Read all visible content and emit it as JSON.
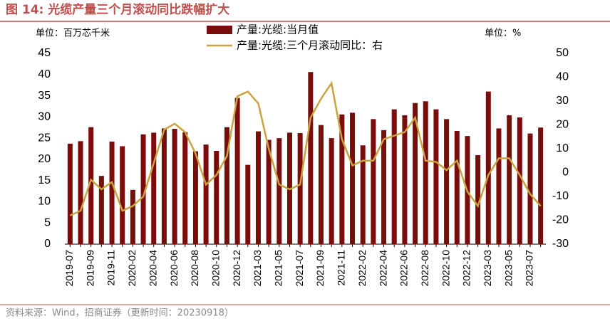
{
  "chart_data": {
    "type": "bar_line",
    "title": "图 14:  光缆产量三个月滚动同比跌幅扩大",
    "y_label": "单位：百万芯千米",
    "y2_label": "单位：%",
    "source": "资料来源：Wind，招商证券（更新时间：20230918）",
    "categories": [
      "2019-07",
      null,
      "2019-09",
      null,
      "2019-11",
      null,
      "2020-02",
      null,
      "2020-04",
      null,
      "2020-06",
      null,
      "2020-08",
      null,
      "2020-10",
      null,
      "2020-12",
      null,
      "2021-03",
      null,
      "2021-05",
      null,
      "2021-07",
      null,
      "2021-09",
      null,
      "2021-11",
      null,
      "2022-02",
      null,
      "2022-04",
      null,
      "2022-06",
      null,
      "2022-08",
      null,
      "2022-10",
      null,
      "2022-12",
      null,
      "2023-03",
      null,
      "2023-05",
      null,
      "2023-07",
      null
    ],
    "series": [
      {
        "name": "产量:光缆:当月值",
        "color": "#7b0c0c",
        "kind": "bar",
        "values": [
          23.7,
          24.3,
          27.6,
          16.1,
          24.2,
          23.1,
          12.8,
          25.9,
          26.3,
          27.3,
          27.2,
          26.4,
          21.9,
          23.5,
          22.0,
          27.6,
          34.5,
          18.7,
          26.6,
          24.6,
          25.0,
          26.3,
          26.2,
          40.6,
          28.1,
          25.0,
          30.6,
          31.0,
          23.3,
          29.5,
          26.9,
          31.8,
          30.4,
          33.3,
          33.7,
          31.8,
          29.5,
          26.7,
          25.5,
          21.0,
          36.0,
          27.3,
          30.4,
          29.9,
          26.1,
          27.5
        ]
      },
      {
        "name": "产量:光缆:三个月滚动同比：右",
        "color": "#c9a43e",
        "kind": "line",
        "axis": "y2",
        "values": [
          -18,
          -16,
          -3,
          -7,
          -4,
          -16,
          -14,
          -10,
          4,
          18,
          20.5,
          17,
          8,
          -5,
          -1,
          7,
          32,
          34,
          29,
          10,
          -5,
          -7,
          -5,
          23,
          31,
          37.5,
          14,
          3,
          5,
          5,
          14,
          15.5,
          17,
          23,
          5,
          4.5,
          1,
          5,
          -8,
          -14,
          -1,
          6,
          6,
          -1,
          -9,
          -14
        ]
      }
    ],
    "ylim": [
      0,
      45
    ],
    "yticks": [
      0,
      5,
      10,
      15,
      20,
      25,
      30,
      35,
      40,
      45
    ],
    "y2lim": [
      -30,
      50
    ],
    "y2ticks": [
      -30,
      -20,
      -10,
      0,
      10,
      20,
      30,
      40,
      50
    ]
  }
}
